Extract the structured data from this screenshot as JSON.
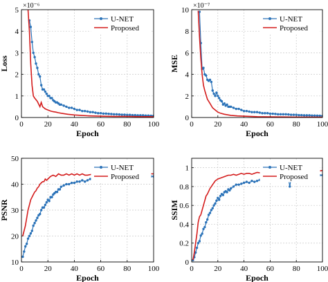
{
  "colors": {
    "unet": "#2a72b8",
    "proposed": "#d41c1c"
  },
  "chart_data": [
    {
      "type": "line",
      "xlabel": "Epoch",
      "ylabel": "Loss",
      "multiplier": "×10⁻⁶",
      "xlim": [
        0,
        100
      ],
      "ylim": [
        0,
        5
      ],
      "xticks": [
        "0",
        "20",
        "40",
        "60",
        "80",
        "100"
      ],
      "yticks": [
        "0",
        "1",
        "2",
        "3",
        "4",
        "5"
      ],
      "grid": true,
      "legend": "top-right",
      "series": [
        {
          "name": "U-NET",
          "marker": "dot",
          "x": [
            6,
            7,
            8,
            9,
            10,
            11,
            12,
            13,
            14,
            15,
            16,
            17,
            18,
            19,
            20,
            21,
            22,
            23,
            24,
            25,
            26,
            27,
            28,
            29,
            30,
            32,
            34,
            36,
            38,
            40,
            42,
            44,
            46,
            48,
            50,
            52,
            54,
            56,
            58,
            60,
            62,
            64,
            66,
            68,
            70,
            72,
            74,
            76,
            78,
            80,
            82,
            84,
            86,
            88,
            90,
            92,
            94,
            96,
            98,
            100
          ],
          "y": [
            4.5,
            4.2,
            3.5,
            3.0,
            2.8,
            2.5,
            2.3,
            2.0,
            1.9,
            1.5,
            1.3,
            1.3,
            1.2,
            1.1,
            1.0,
            1.0,
            0.9,
            0.9,
            0.8,
            0.75,
            0.7,
            0.7,
            0.65,
            0.6,
            0.6,
            0.55,
            0.5,
            0.45,
            0.45,
            0.4,
            0.35,
            0.35,
            0.3,
            0.3,
            0.28,
            0.25,
            0.25,
            0.22,
            0.2,
            0.2,
            0.18,
            0.18,
            0.17,
            0.16,
            0.15,
            0.15,
            0.14,
            0.13,
            0.13,
            0.12,
            0.12,
            0.11,
            0.11,
            0.1,
            0.1,
            0.1,
            0.09,
            0.09,
            0.08,
            0.08
          ]
        },
        {
          "name": "Proposed",
          "x": [
            5,
            6,
            7,
            8,
            9,
            10,
            12,
            14,
            15,
            16,
            18,
            20,
            22,
            24,
            26,
            28,
            30,
            35,
            40,
            45,
            50,
            60,
            70,
            80,
            90,
            100
          ],
          "y": [
            5.0,
            4.0,
            2.5,
            1.5,
            1.0,
            0.9,
            0.75,
            0.5,
            0.7,
            0.5,
            0.4,
            0.35,
            0.3,
            0.27,
            0.25,
            0.22,
            0.2,
            0.15,
            0.12,
            0.1,
            0.08,
            0.06,
            0.05,
            0.05,
            0.04,
            0.04
          ]
        }
      ]
    },
    {
      "type": "line",
      "xlabel": "Epoch",
      "ylabel": "MSE",
      "multiplier": "×10⁻⁷",
      "xlim": [
        0,
        100
      ],
      "ylim": [
        0,
        10
      ],
      "xticks": [
        "0",
        "20",
        "40",
        "60",
        "80",
        "100"
      ],
      "yticks": [
        "0",
        "2",
        "4",
        "6",
        "8",
        "10"
      ],
      "grid": true,
      "legend": "top-right",
      "series": [
        {
          "name": "U-NET",
          "marker": "dot",
          "x": [
            6,
            7,
            8,
            9,
            10,
            11,
            12,
            13,
            14,
            15,
            16,
            17,
            18,
            19,
            20,
            21,
            22,
            23,
            24,
            25,
            26,
            27,
            28,
            29,
            30,
            32,
            34,
            36,
            38,
            40,
            42,
            44,
            46,
            48,
            50,
            52,
            54,
            56,
            58,
            60,
            62,
            64,
            66,
            68,
            70,
            72,
            74,
            76,
            78,
            80,
            82,
            84,
            86,
            88,
            90,
            92,
            94,
            96,
            98,
            100
          ],
          "y": [
            9.8,
            6.9,
            4.5,
            4.6,
            4.0,
            3.9,
            3.5,
            3.4,
            3.5,
            3.3,
            2.5,
            2.2,
            2.0,
            2.3,
            2.0,
            1.8,
            1.6,
            1.5,
            1.2,
            1.3,
            1.1,
            1.2,
            1.0,
            1.0,
            1.0,
            0.9,
            0.8,
            0.8,
            0.7,
            0.6,
            0.6,
            0.55,
            0.5,
            0.5,
            0.5,
            0.45,
            0.4,
            0.4,
            0.4,
            0.35,
            0.35,
            0.33,
            0.3,
            0.3,
            0.3,
            0.3,
            0.28,
            0.25,
            0.25,
            0.25,
            0.22,
            0.22,
            0.2,
            0.2,
            0.2,
            0.18,
            0.18,
            0.17,
            0.16,
            0.15
          ]
        },
        {
          "name": "Proposed",
          "x": [
            5,
            6,
            7,
            8,
            9,
            10,
            12,
            14,
            16,
            18,
            20,
            22,
            25,
            30,
            35,
            40,
            45,
            50,
            60,
            70,
            80,
            90,
            100
          ],
          "y": [
            9.9,
            7.5,
            5.5,
            4.0,
            3.0,
            2.5,
            1.7,
            1.3,
            0.9,
            0.7,
            0.5,
            0.4,
            0.3,
            0.2,
            0.15,
            0.12,
            0.1,
            0.08,
            0.06,
            0.05,
            0.04,
            0.04,
            0.03
          ]
        }
      ]
    },
    {
      "type": "line",
      "xlabel": "Epoch",
      "ylabel": "PSNR",
      "xlim": [
        0,
        100
      ],
      "ylim": [
        10,
        50
      ],
      "xticks": [
        "0",
        "20",
        "40",
        "60",
        "80",
        "100"
      ],
      "yticks": [
        "10",
        "20",
        "30",
        "40",
        "50"
      ],
      "grid": true,
      "legend": "top-right",
      "series": [
        {
          "name": "U-NET",
          "marker": "dot",
          "x": [
            1,
            2,
            3,
            4,
            5,
            6,
            7,
            8,
            9,
            10,
            11,
            12,
            13,
            14,
            15,
            16,
            17,
            18,
            19,
            20,
            21,
            22,
            23,
            24,
            25,
            26,
            27,
            28,
            29,
            30,
            32,
            34,
            36,
            38,
            40,
            42,
            44,
            46,
            48,
            50,
            52,
            54,
            56,
            58,
            60,
            62,
            64,
            66,
            68,
            70,
            72,
            74,
            76,
            78,
            80,
            82,
            84,
            86,
            88,
            90,
            92,
            94,
            96,
            98,
            100
          ],
          "y": [
            12,
            14,
            16,
            17,
            19,
            20,
            21,
            22,
            24,
            25,
            26,
            27,
            28,
            28.5,
            30,
            31,
            31,
            32,
            33,
            34,
            33.5,
            35,
            35,
            36,
            36.5,
            37,
            37,
            38,
            38,
            39,
            39.5,
            40,
            40,
            40.5,
            40.5,
            41,
            41,
            41.5,
            41,
            41.5,
            42,
            42,
            41.5,
            42,
            42,
            42.5,
            42,
            42.5,
            42,
            42.5,
            43,
            42.5,
            43,
            42.5,
            43,
            42.5,
            43,
            43,
            42.5,
            43,
            43,
            43.5,
            43,
            43,
            43
          ]
        },
        {
          "name": "Proposed",
          "x": [
            1,
            2,
            3,
            4,
            5,
            6,
            7,
            8,
            9,
            10,
            11,
            12,
            13,
            14,
            15,
            16,
            17,
            18,
            19,
            20,
            22,
            24,
            26,
            28,
            30,
            32,
            34,
            36,
            38,
            40,
            42,
            44,
            46,
            48,
            50,
            55,
            60,
            65,
            70,
            75,
            80,
            85,
            90,
            95,
            100
          ],
          "y": [
            20,
            22,
            24,
            27,
            30,
            32,
            34,
            35,
            36,
            37,
            37.5,
            38.5,
            39,
            40,
            40.5,
            41,
            41,
            42,
            41.5,
            42,
            43,
            43.5,
            43,
            44,
            43.5,
            43.5,
            44,
            43.5,
            44,
            43.5,
            44,
            43.5,
            44,
            43.5,
            43.5,
            44,
            43.5,
            44,
            43.5,
            43.5,
            44,
            43.5,
            43.5,
            44,
            44
          ]
        }
      ]
    },
    {
      "type": "line",
      "xlabel": "Epoch",
      "ylabel": "SSIM",
      "xlim": [
        0,
        100
      ],
      "ylim": [
        0,
        1.1
      ],
      "xticks": [
        "0",
        "20",
        "40",
        "60",
        "80",
        "100"
      ],
      "yticks": [
        "0",
        "0.2",
        "0.4",
        "0.6",
        "0.8",
        "1"
      ],
      "grid": true,
      "legend": "top-right",
      "series": [
        {
          "name": "U-NET",
          "marker": "dot",
          "x": [
            1,
            2,
            3,
            4,
            5,
            6,
            7,
            8,
            9,
            10,
            11,
            12,
            13,
            14,
            15,
            16,
            17,
            18,
            19,
            20,
            21,
            22,
            23,
            24,
            25,
            26,
            27,
            28,
            29,
            30,
            32,
            34,
            36,
            38,
            40,
            42,
            44,
            46,
            48,
            50,
            52,
            54,
            56,
            58,
            60,
            62,
            64,
            66,
            68,
            70,
            72,
            74,
            75,
            76,
            78,
            80,
            82,
            84,
            86,
            88,
            90,
            92,
            94,
            96,
            98,
            100
          ],
          "y": [
            0.02,
            0.05,
            0.1,
            0.15,
            0.2,
            0.22,
            0.28,
            0.3,
            0.35,
            0.37,
            0.42,
            0.45,
            0.5,
            0.52,
            0.55,
            0.57,
            0.6,
            0.62,
            0.65,
            0.68,
            0.66,
            0.7,
            0.72,
            0.71,
            0.74,
            0.75,
            0.74,
            0.77,
            0.76,
            0.78,
            0.8,
            0.82,
            0.82,
            0.83,
            0.84,
            0.85,
            0.84,
            0.86,
            0.85,
            0.86,
            0.87,
            0.86,
            0.87,
            0.87,
            0.88,
            0.87,
            0.88,
            0.88,
            0.89,
            0.88,
            0.89,
            0.88,
            0.8,
            0.89,
            0.9,
            0.9,
            0.89,
            0.9,
            0.9,
            0.91,
            0.9,
            0.91,
            0.92,
            0.91,
            0.92,
            0.92
          ]
        },
        {
          "name": "Proposed",
          "x": [
            1,
            2,
            3,
            4,
            5,
            6,
            7,
            8,
            9,
            10,
            11,
            12,
            13,
            14,
            15,
            16,
            17,
            18,
            19,
            20,
            22,
            24,
            26,
            28,
            30,
            32,
            34,
            36,
            38,
            40,
            42,
            44,
            46,
            48,
            50,
            55,
            60,
            65,
            70,
            74,
            75,
            76,
            80,
            85,
            90,
            95,
            100
          ],
          "y": [
            0.02,
            0.1,
            0.2,
            0.3,
            0.42,
            0.48,
            0.5,
            0.55,
            0.6,
            0.65,
            0.7,
            0.72,
            0.75,
            0.78,
            0.8,
            0.82,
            0.84,
            0.86,
            0.87,
            0.88,
            0.89,
            0.9,
            0.91,
            0.92,
            0.92,
            0.93,
            0.92,
            0.93,
            0.94,
            0.93,
            0.94,
            0.94,
            0.93,
            0.94,
            0.95,
            0.94,
            0.95,
            0.95,
            0.95,
            0.95,
            0.88,
            0.95,
            0.96,
            0.95,
            0.96,
            0.96,
            0.97
          ]
        }
      ]
    }
  ]
}
